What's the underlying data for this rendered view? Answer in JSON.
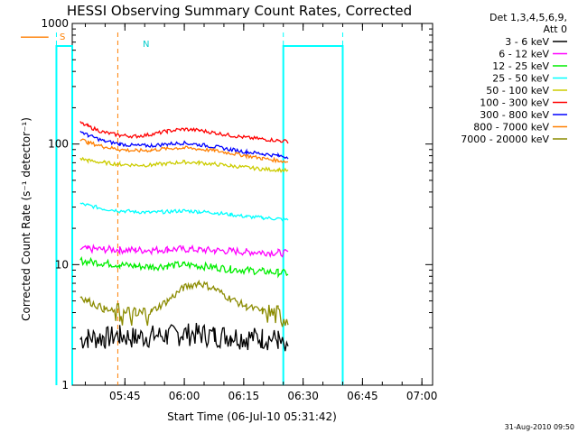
{
  "chart_data": {
    "type": "line",
    "title": "HESSI Observing Summary Count Rates, Corrected",
    "xlabel": "Start Time (06-Jul-10 05:31:42)",
    "ylabel": "Corrected Count Rate (s⁻¹ detector⁻¹)",
    "yscale": "log",
    "ylim": [
      1,
      1000
    ],
    "xlim_minutes": [
      0,
      91
    ],
    "x_ticks": [
      "05:45",
      "06:00",
      "06:15",
      "06:30",
      "06:45",
      "07:00"
    ],
    "y_ticks": [
      "1",
      "10",
      "100",
      "1000"
    ],
    "legend_header": [
      "Det 1,3,4,5,6,9,",
      "Att 0"
    ],
    "legend_position": "right",
    "timestamp": "31-Aug-2010 09:50",
    "flags": {
      "S": "S",
      "N": "N"
    },
    "series": [
      {
        "name": "3 - 6 keV",
        "color": "#000000",
        "x": [
          2,
          4,
          8,
          12,
          16,
          20,
          24,
          28,
          32,
          36,
          40,
          44,
          48,
          52,
          54.5
        ],
        "y": [
          2.4,
          2.5,
          2.5,
          2.6,
          2.5,
          2.6,
          2.6,
          2.7,
          2.7,
          2.6,
          2.6,
          2.5,
          2.5,
          2.4,
          1.8
        ]
      },
      {
        "name": "6 - 12 keV",
        "color": "#ff00ff",
        "x": [
          2,
          4,
          8,
          12,
          16,
          20,
          24,
          28,
          32,
          36,
          40,
          44,
          48,
          52,
          54.5
        ],
        "y": [
          13.5,
          13.5,
          13.4,
          13.3,
          13.2,
          13.2,
          13.4,
          13.5,
          13.3,
          13.1,
          13.0,
          12.8,
          12.7,
          12.6,
          12.4
        ]
      },
      {
        "name": "12 - 25 keV",
        "color": "#00ee00",
        "x": [
          2,
          4,
          8,
          12,
          16,
          20,
          24,
          28,
          32,
          36,
          40,
          44,
          48,
          52,
          54.5
        ],
        "y": [
          10.8,
          10.6,
          10.3,
          10.0,
          9.7,
          9.6,
          9.8,
          10.0,
          9.8,
          9.5,
          9.2,
          9.0,
          8.8,
          8.6,
          8.5
        ]
      },
      {
        "name": "25 - 50 keV",
        "color": "#00ffff",
        "x": [
          2,
          4,
          8,
          12,
          16,
          20,
          24,
          28,
          32,
          36,
          40,
          44,
          48,
          52,
          54.5
        ],
        "y": [
          32,
          31,
          29,
          28,
          27.5,
          27,
          27.5,
          28,
          27.5,
          27,
          26,
          25,
          24.5,
          24,
          23.5
        ]
      },
      {
        "name": "50 - 100 keV",
        "color": "#cccc00",
        "x": [
          2,
          4,
          8,
          12,
          16,
          20,
          24,
          28,
          32,
          36,
          40,
          44,
          48,
          52,
          54.5
        ],
        "y": [
          76,
          73,
          70,
          68,
          67,
          67,
          69,
          71,
          70,
          68,
          66,
          64,
          62,
          61,
          60
        ]
      },
      {
        "name": "100 - 300 keV",
        "color": "#ff0000",
        "x": [
          2,
          4,
          8,
          12,
          16,
          20,
          24,
          28,
          32,
          36,
          40,
          44,
          48,
          52,
          54.5
        ],
        "y": [
          150,
          140,
          125,
          118,
          116,
          120,
          128,
          133,
          130,
          124,
          118,
          113,
          110,
          107,
          105
        ]
      },
      {
        "name": "300 - 800 keV",
        "color": "#0000ff",
        "x": [
          2,
          4,
          8,
          12,
          16,
          20,
          24,
          28,
          32,
          36,
          40,
          44,
          48,
          52,
          54.5
        ],
        "y": [
          128,
          118,
          106,
          100,
          97,
          97,
          100,
          102,
          99,
          95,
          90,
          86,
          83,
          80,
          78
        ]
      },
      {
        "name": "800 - 7000 keV",
        "color": "#ff7f00",
        "x": [
          -13,
          -6,
          -5.9,
          2,
          4,
          8,
          12,
          16,
          20,
          24,
          28,
          32,
          36,
          40,
          44,
          48,
          52,
          54.5
        ],
        "y": [
          770,
          770,
          null,
          110,
          103,
          95,
          90,
          88,
          89,
          92,
          93,
          91,
          88,
          84,
          80,
          76,
          73,
          71
        ]
      },
      {
        "name": "7000 - 20000 keV",
        "color": "#8b8b00",
        "x": [
          2,
          4,
          8,
          12,
          16,
          20,
          24,
          28,
          32,
          36,
          40,
          44,
          48,
          52,
          54.5
        ],
        "y": [
          5.5,
          5.0,
          4.3,
          3.9,
          3.7,
          4.1,
          5.0,
          6.4,
          7.1,
          6.3,
          5.2,
          4.5,
          4.1,
          3.8,
          3.6
        ]
      }
    ],
    "night_level": 650,
    "orbit_markers": [
      {
        "type": "night_start",
        "minute": -4,
        "color": "#00ffff"
      },
      {
        "type": "night_end",
        "minute": 11.5,
        "color": "#ff7f00"
      },
      {
        "type": "night_start",
        "minute": 53.3,
        "color": "#00ffff"
      },
      {
        "type": "night_end",
        "minute": 68.3,
        "color": "#00ffff"
      }
    ]
  }
}
